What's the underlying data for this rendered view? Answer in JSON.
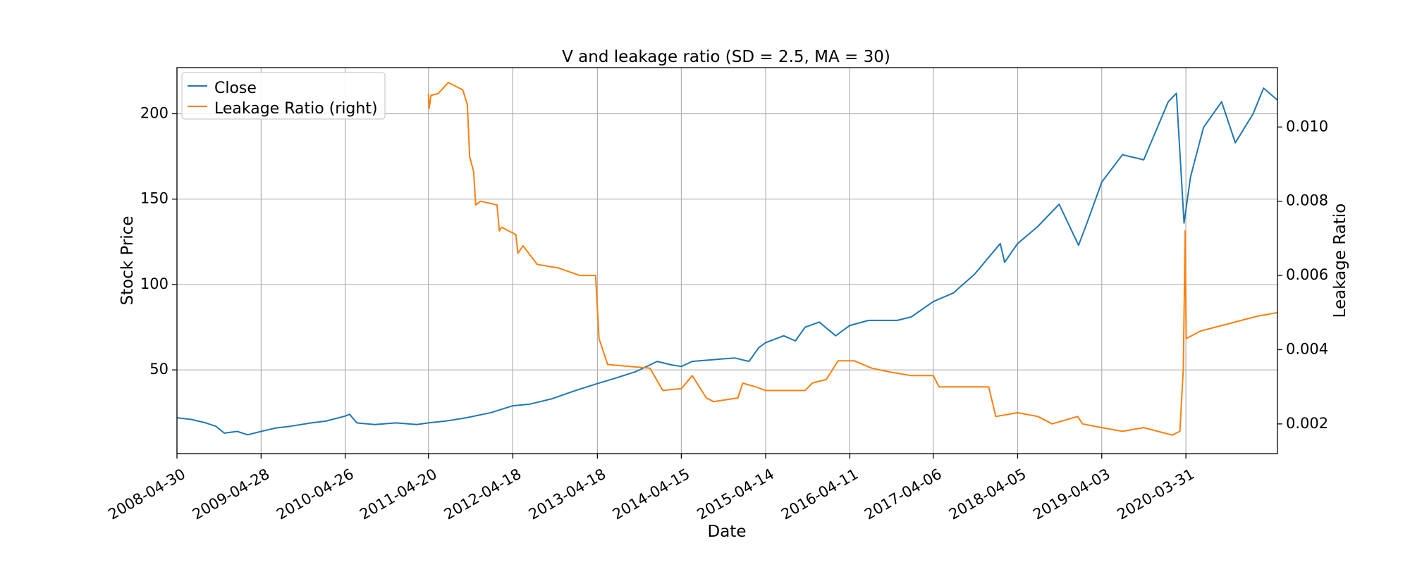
{
  "chart_data": {
    "type": "line",
    "title": "V and leakage ratio (SD = 2.5, MA = 30)",
    "xlabel": "Date",
    "ylabel": "Stock Price",
    "ylabel_right": "Leakage Ratio",
    "x_ticks": [
      "2008-04-30",
      "2009-04-28",
      "2010-04-26",
      "2011-04-20",
      "2012-04-18",
      "2013-04-18",
      "2014-04-15",
      "2015-04-14",
      "2016-04-11",
      "2017-04-06",
      "2018-04-05",
      "2019-04-03",
      "2020-03-31"
    ],
    "xlim": [
      "2008-04-30",
      "2021-04-30"
    ],
    "ylim": [
      1,
      227
    ],
    "yticks": [
      50,
      100,
      150,
      200
    ],
    "ylim_right": [
      0.0012,
      0.0116
    ],
    "yticks_right": [
      "0.002",
      "0.004",
      "0.006",
      "0.008",
      "0.010"
    ],
    "grid": true,
    "legend_position": "top-left",
    "colors": {
      "close": "#1f77b4",
      "leakage": "#ff7f0e"
    },
    "series": [
      {
        "name": "Close",
        "axis": "left",
        "points": [
          [
            "2008-04-30",
            22
          ],
          [
            "2008-07-01",
            21
          ],
          [
            "2008-09-01",
            19
          ],
          [
            "2008-10-15",
            17
          ],
          [
            "2008-11-20",
            13
          ],
          [
            "2009-01-15",
            14
          ],
          [
            "2009-03-01",
            12
          ],
          [
            "2009-04-28",
            14
          ],
          [
            "2009-07-01",
            16
          ],
          [
            "2009-09-01",
            17
          ],
          [
            "2009-12-01",
            19
          ],
          [
            "2010-02-01",
            20
          ],
          [
            "2010-04-26",
            23
          ],
          [
            "2010-05-15",
            24
          ],
          [
            "2010-06-15",
            19
          ],
          [
            "2010-09-01",
            18
          ],
          [
            "2010-12-01",
            19
          ],
          [
            "2011-03-01",
            18
          ],
          [
            "2011-04-20",
            19
          ],
          [
            "2011-07-01",
            20
          ],
          [
            "2011-10-01",
            22
          ],
          [
            "2012-01-15",
            25
          ],
          [
            "2012-04-18",
            29
          ],
          [
            "2012-07-01",
            30
          ],
          [
            "2012-10-01",
            33
          ],
          [
            "2013-01-15",
            38
          ],
          [
            "2013-04-18",
            42
          ],
          [
            "2013-07-01",
            45
          ],
          [
            "2013-10-01",
            49
          ],
          [
            "2014-01-01",
            55
          ],
          [
            "2014-03-01",
            53
          ],
          [
            "2014-04-15",
            52
          ],
          [
            "2014-06-01",
            55
          ],
          [
            "2014-09-01",
            56
          ],
          [
            "2014-12-01",
            57
          ],
          [
            "2015-02-01",
            55
          ],
          [
            "2015-03-15",
            63
          ],
          [
            "2015-04-14",
            66
          ],
          [
            "2015-07-01",
            70
          ],
          [
            "2015-08-20",
            67
          ],
          [
            "2015-10-01",
            75
          ],
          [
            "2015-12-01",
            78
          ],
          [
            "2016-02-10",
            70
          ],
          [
            "2016-04-11",
            76
          ],
          [
            "2016-07-01",
            79
          ],
          [
            "2016-11-01",
            79
          ],
          [
            "2017-01-01",
            81
          ],
          [
            "2017-04-06",
            90
          ],
          [
            "2017-07-01",
            95
          ],
          [
            "2017-10-01",
            106
          ],
          [
            "2018-01-20",
            124
          ],
          [
            "2018-02-08",
            113
          ],
          [
            "2018-04-05",
            124
          ],
          [
            "2018-07-01",
            134
          ],
          [
            "2018-10-01",
            147
          ],
          [
            "2018-12-24",
            123
          ],
          [
            "2019-02-01",
            137
          ],
          [
            "2019-04-03",
            160
          ],
          [
            "2019-07-01",
            176
          ],
          [
            "2019-10-01",
            173
          ],
          [
            "2020-01-15",
            207
          ],
          [
            "2020-02-19",
            212
          ],
          [
            "2020-03-23",
            136
          ],
          [
            "2020-04-20",
            163
          ],
          [
            "2020-06-15",
            192
          ],
          [
            "2020-09-01",
            207
          ],
          [
            "2020-10-30",
            183
          ],
          [
            "2021-01-15",
            200
          ],
          [
            "2021-03-01",
            215
          ],
          [
            "2021-04-30",
            208
          ]
        ]
      },
      {
        "name": "Leakage Ratio (right)",
        "axis": "right",
        "points": [
          [
            "2011-04-20",
            0.0109
          ],
          [
            "2011-04-23",
            0.0105
          ],
          [
            "2011-05-01",
            0.01085
          ],
          [
            "2011-06-01",
            0.0109
          ],
          [
            "2011-07-15",
            0.0112
          ],
          [
            "2011-09-15",
            0.011
          ],
          [
            "2011-10-05",
            0.0106
          ],
          [
            "2011-10-15",
            0.0092
          ],
          [
            "2011-11-01",
            0.0088
          ],
          [
            "2011-11-10",
            0.0079
          ],
          [
            "2011-12-01",
            0.008
          ],
          [
            "2012-02-10",
            0.0079
          ],
          [
            "2012-02-20",
            0.0072
          ],
          [
            "2012-03-01",
            0.0073
          ],
          [
            "2012-05-01",
            0.0071
          ],
          [
            "2012-05-10",
            0.0066
          ],
          [
            "2012-06-01",
            0.0068
          ],
          [
            "2012-08-01",
            0.0063
          ],
          [
            "2012-11-01",
            0.0062
          ],
          [
            "2013-02-01",
            0.006
          ],
          [
            "2013-04-10",
            0.006
          ],
          [
            "2013-04-25",
            0.0043
          ],
          [
            "2013-06-01",
            0.0036
          ],
          [
            "2013-12-01",
            0.0035
          ],
          [
            "2014-01-25",
            0.0029
          ],
          [
            "2014-04-15",
            0.00295
          ],
          [
            "2014-06-01",
            0.0033
          ],
          [
            "2014-08-01",
            0.0027
          ],
          [
            "2014-09-01",
            0.0026
          ],
          [
            "2014-12-15",
            0.0027
          ],
          [
            "2015-01-05",
            0.0031
          ],
          [
            "2015-03-01",
            0.003
          ],
          [
            "2015-04-14",
            0.0029
          ],
          [
            "2015-10-01",
            0.0029
          ],
          [
            "2015-11-01",
            0.0031
          ],
          [
            "2016-01-01",
            0.0032
          ],
          [
            "2016-02-20",
            0.0037
          ],
          [
            "2016-05-01",
            0.0037
          ],
          [
            "2016-07-15",
            0.0035
          ],
          [
            "2016-10-01",
            0.0034
          ],
          [
            "2017-01-01",
            0.0033
          ],
          [
            "2017-04-06",
            0.0033
          ],
          [
            "2017-05-01",
            0.003
          ],
          [
            "2017-12-01",
            0.003
          ],
          [
            "2018-01-01",
            0.0022
          ],
          [
            "2018-04-05",
            0.0023
          ],
          [
            "2018-07-01",
            0.0022
          ],
          [
            "2018-09-01",
            0.002
          ],
          [
            "2018-12-20",
            0.0022
          ],
          [
            "2019-01-10",
            0.002
          ],
          [
            "2019-04-03",
            0.0019
          ],
          [
            "2019-07-01",
            0.0018
          ],
          [
            "2019-10-01",
            0.0019
          ],
          [
            "2019-12-01",
            0.0018
          ],
          [
            "2020-02-01",
            0.0017
          ],
          [
            "2020-03-05",
            0.0018
          ],
          [
            "2020-03-20",
            0.0035
          ],
          [
            "2020-03-28",
            0.0072
          ],
          [
            "2020-04-01",
            0.0043
          ],
          [
            "2020-06-01",
            0.0045
          ],
          [
            "2020-10-01",
            0.0047
          ],
          [
            "2021-02-01",
            0.0049
          ],
          [
            "2021-04-30",
            0.005
          ]
        ]
      }
    ]
  }
}
